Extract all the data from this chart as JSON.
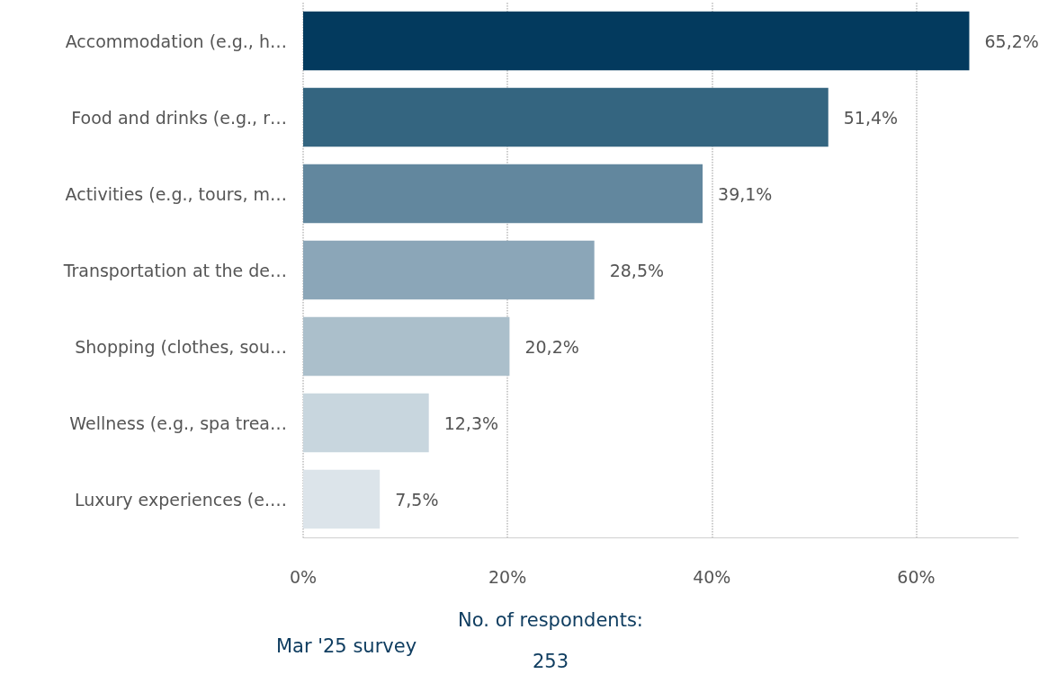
{
  "chart_data": {
    "type": "bar",
    "orientation": "horizontal",
    "categories": [
      "Accommodation (e.g., h…",
      "Food and drinks (e.g., r…",
      "Activities (e.g., tours, m…",
      "Transportation at the de…",
      "Shopping (clothes, sou…",
      "Wellness (e.g., spa trea…",
      "Luxury experiences (e.…"
    ],
    "values": [
      65.2,
      51.4,
      39.1,
      28.5,
      20.2,
      12.3,
      7.5
    ],
    "colors": [
      "#033a5e",
      "#346580",
      "#62879e",
      "#8ba6b8",
      "#abbfcb",
      "#c8d6de",
      "#dce4ea"
    ],
    "value_labels": [
      "65,2%",
      "51,4%",
      "39,1%",
      "28,5%",
      "20,2%",
      "12,3%",
      "7,5%"
    ],
    "xlim": [
      0,
      70
    ],
    "xticks": [
      {
        "value": 0,
        "label": "0%"
      },
      {
        "value": 20,
        "label": "20%"
      },
      {
        "value": 40,
        "label": "40%"
      },
      {
        "value": 60,
        "label": "60%"
      }
    ],
    "grid": "x",
    "annotations": [
      "No. of respondents:",
      "253",
      "Mar '25 survey"
    ]
  }
}
